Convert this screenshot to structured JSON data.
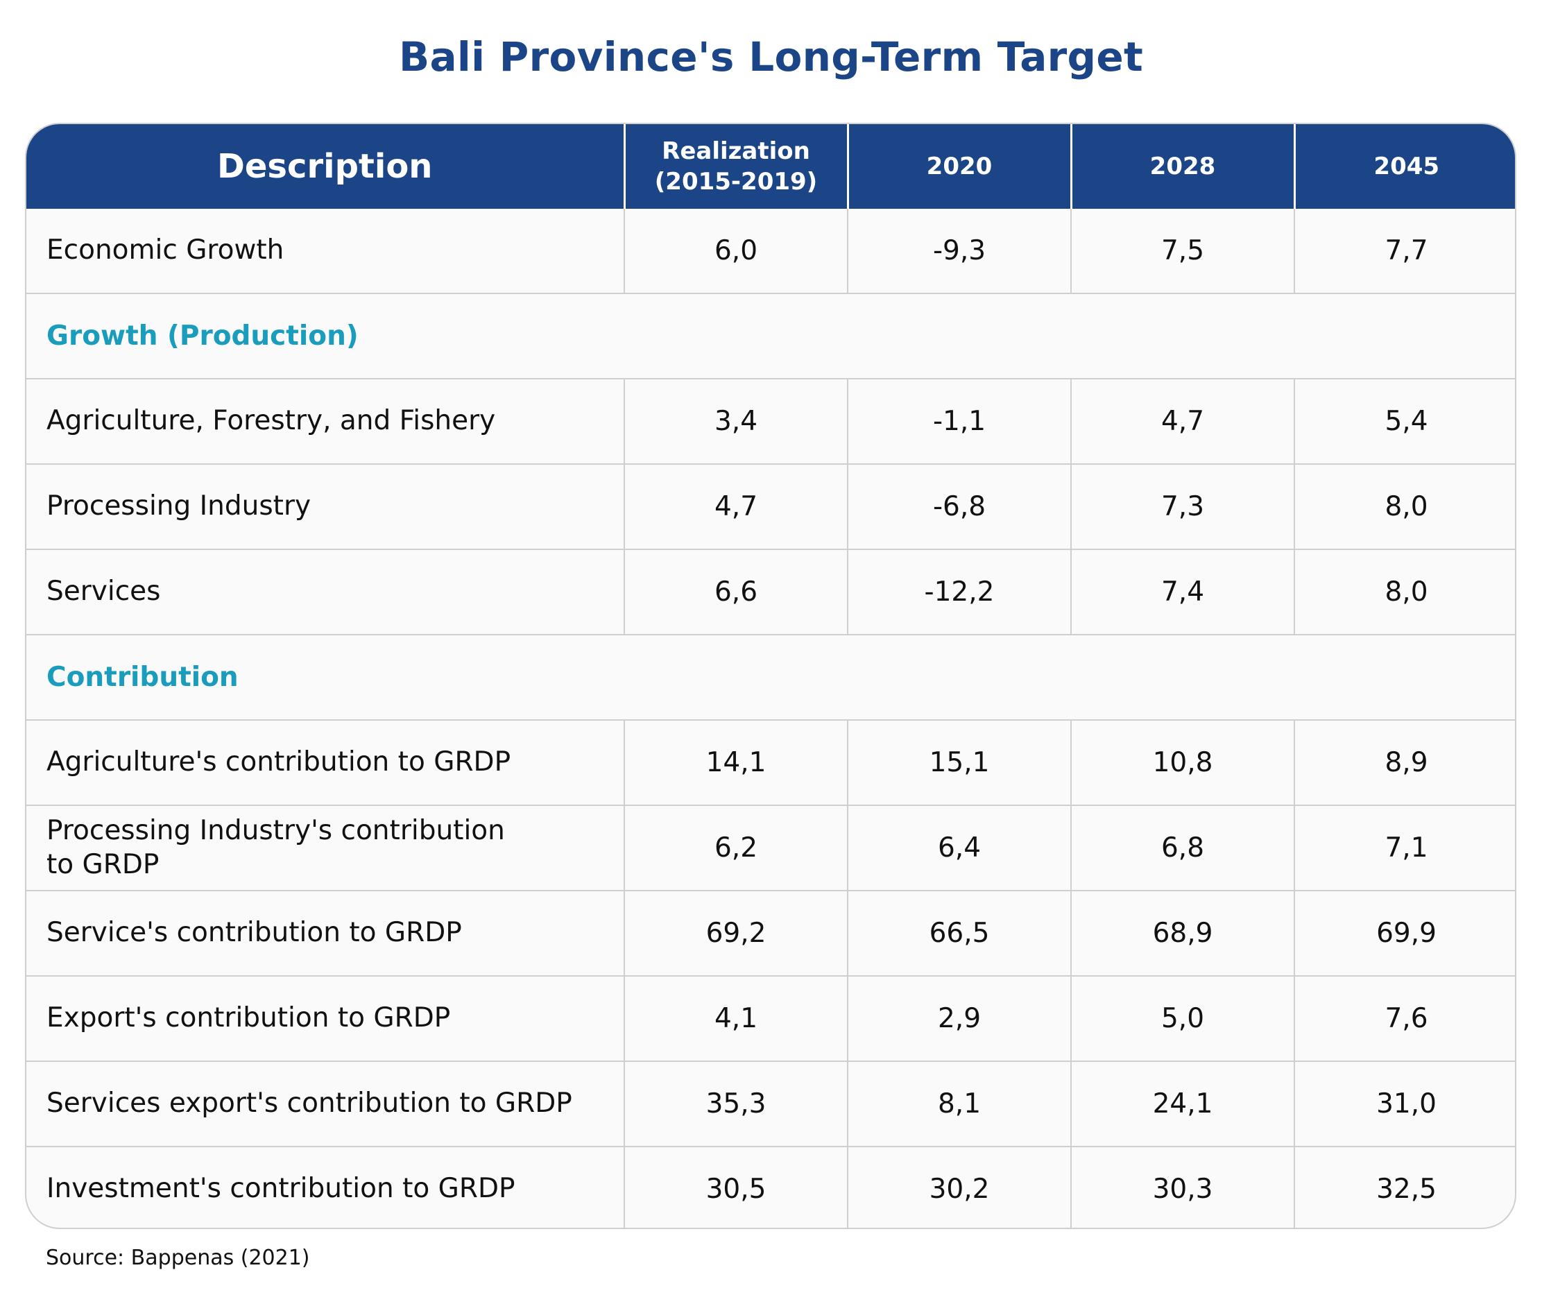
{
  "chart_data": {
    "type": "table",
    "title": "Bali Province's Long-Term Target",
    "columns": [
      "Description",
      "Realization (2015-2019)",
      "2020",
      "2028",
      "2045"
    ],
    "column_labels": {
      "description": "Description",
      "realization_line1": "Realization",
      "realization_line2": "(2015-2019)",
      "y2020": "2020",
      "y2028": "2028",
      "y2045": "2045"
    },
    "rows": [
      {
        "label": "Economic Growth",
        "values": [
          "6,0",
          "-9,3",
          "7,5",
          "7,7"
        ]
      },
      {
        "section": "Growth (Production)"
      },
      {
        "label": "Agriculture, Forestry, and Fishery",
        "values": [
          "3,4",
          "-1,1",
          "4,7",
          "5,4"
        ]
      },
      {
        "label": "Processing Industry",
        "values": [
          "4,7",
          "-6,8",
          "7,3",
          "8,0"
        ]
      },
      {
        "label": "Services",
        "values": [
          "6,6",
          "-12,2",
          "7,4",
          "8,0"
        ]
      },
      {
        "section": "Contribution"
      },
      {
        "label": "Agriculture's contribution to GRDP",
        "values": [
          "14,1",
          "15,1",
          "10,8",
          "8,9"
        ]
      },
      {
        "label": "Processing Industry's contribution to GRDP",
        "values": [
          "6,2",
          "6,4",
          "6,8",
          "7,1"
        ]
      },
      {
        "label": "Service's contribution to GRDP",
        "values": [
          "69,2",
          "66,5",
          "68,9",
          "69,9"
        ]
      },
      {
        "label": "Export's contribution to GRDP",
        "values": [
          "4,1",
          "2,9",
          "5,0",
          "7,6"
        ]
      },
      {
        "label": "Services export's contribution to GRDP",
        "values": [
          "35,3",
          "8,1",
          "24,1",
          "31,0"
        ]
      },
      {
        "label": "Investment's contribution to GRDP",
        "values": [
          "30,5",
          "30,2",
          "30,3",
          "32,5"
        ]
      }
    ],
    "source": "Source: Bappenas (2021)"
  },
  "colors": {
    "header_bg": "#1b4586",
    "title": "#1b4586",
    "section_text": "#1a9cbc",
    "row_bg": "#fafafa",
    "grid": "#cfcfcf"
  }
}
